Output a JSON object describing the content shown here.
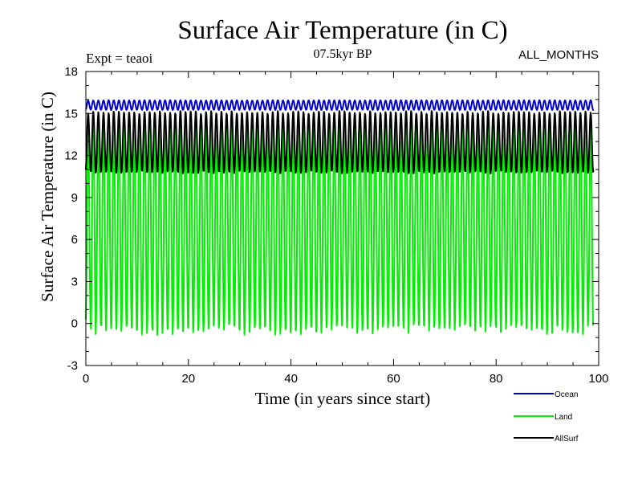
{
  "chart_data": {
    "type": "line",
    "title": "Surface Air Temperature (in C)",
    "subtitle": "07.5kyr BP",
    "left_note": "Expt = teaoi",
    "right_note": "ALL_MONTHS",
    "xlabel": "Time (in years since start)",
    "ylabel": "Surface Air Temperature (in C)",
    "xlim": [
      0,
      100
    ],
    "ylim": [
      -3,
      18
    ],
    "x_ticks": [
      0,
      20,
      40,
      60,
      80,
      100
    ],
    "x_tick_labels": [
      "0",
      "20",
      "40",
      "60",
      "80",
      "100"
    ],
    "y_ticks": [
      -3,
      0,
      3,
      6,
      9,
      12,
      15,
      18
    ],
    "y_tick_labels": [
      "-3",
      "0",
      "3",
      "6",
      "9",
      "12",
      "15",
      "18"
    ],
    "x_minor_step": 5,
    "y_minor_step": 1,
    "grid": false,
    "time_range": [
      0,
      99
    ],
    "cycle_years": 1,
    "series": [
      {
        "name": "Ocean",
        "color": "#0000cc",
        "mean": 15.6,
        "amplitude": 0.35,
        "range": [
          14.9,
          16.5
        ]
      },
      {
        "name": "Land",
        "color": "#00ee00",
        "mean": 7.0,
        "amplitude": 7.7,
        "range": [
          -1.1,
          16.2
        ]
      },
      {
        "name": "AllSurf",
        "color": "#000000",
        "mean": 12.95,
        "amplitude": 2.2,
        "range": [
          10.4,
          15.4
        ]
      }
    ],
    "legend_position": "bottom-right"
  }
}
